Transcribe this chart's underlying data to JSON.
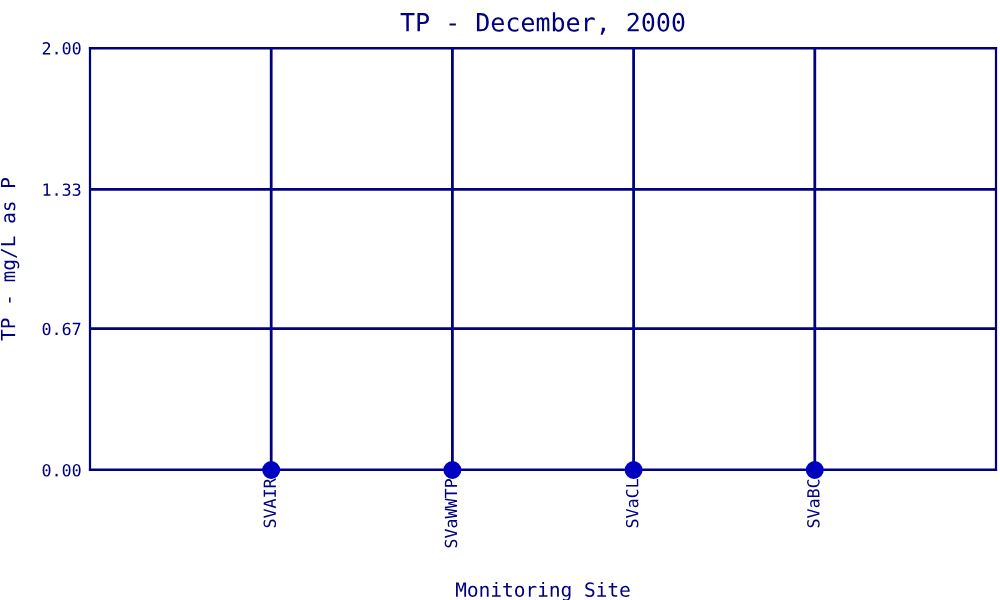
{
  "chart_data": {
    "type": "scatter",
    "title": "TP - December, 2000",
    "xlabel": "Monitoring Site",
    "ylabel": "TP - mg/L as P",
    "categories": [
      "SVAIR",
      "SVaWWTP",
      "SVaCL",
      "SVaBC"
    ],
    "values": [
      0,
      0,
      0,
      0
    ],
    "color": "#0000c0",
    "marker": "circle",
    "ylim": [
      0,
      2
    ],
    "yticks": [
      {
        "value": 0,
        "label": "0.00"
      },
      0.67,
      1.33,
      {
        "value": 2,
        "label": "2.00"
      }
    ],
    "grid": true
  }
}
